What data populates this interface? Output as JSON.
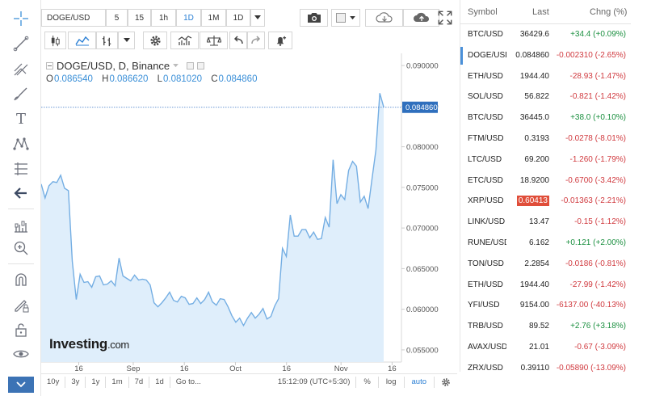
{
  "toolbar": {
    "symbol": "DOGE/USD",
    "intervals": [
      "5",
      "15",
      "1h",
      "1D",
      "1M",
      "1D"
    ],
    "active_interval": "1D"
  },
  "legend": {
    "title": "DOGE/USD, D, Binance",
    "open_label": "O",
    "open": "0.086540",
    "high_label": "H",
    "high": "0.086620",
    "low_label": "L",
    "low": "0.081020",
    "close_label": "C",
    "close": "0.084860"
  },
  "price_axis": {
    "ticks": [
      "0.090000",
      "0.085000",
      "0.080000",
      "0.075000",
      "0.070000",
      "0.065000",
      "0.060000",
      "0.055000"
    ],
    "current_price": "0.084860"
  },
  "time_axis": {
    "ticks": [
      "16",
      "Sep",
      "16",
      "Oct",
      "16",
      "Nov",
      "16"
    ]
  },
  "watermark": {
    "brand": "Investing",
    "suffix": ".com"
  },
  "bottom_bar": {
    "ranges": [
      "10y",
      "3y",
      "1y",
      "1m",
      "7d",
      "1d"
    ],
    "goto": "Go to...",
    "clock": "15:12:09 (UTC+5:30)",
    "percent": "%",
    "log": "log",
    "auto": "auto"
  },
  "chart_data": {
    "type": "area",
    "title": "DOGE/USD, D, Binance",
    "xlabel": "",
    "ylabel": "",
    "ylim": [
      0.0535,
      0.0915
    ],
    "x_range_days": [
      0,
      92
    ],
    "x_ticks": [
      {
        "day": 15,
        "label": "16"
      },
      {
        "day": 31,
        "label": "Sep"
      },
      {
        "day": 46,
        "label": "16"
      },
      {
        "day": 61,
        "label": "Oct"
      },
      {
        "day": 76,
        "label": "16"
      },
      {
        "day": 92,
        "label": "Nov"
      },
      {
        "day": 107,
        "label": "16"
      }
    ],
    "series": [
      {
        "name": "DOGE/USD",
        "values": [
          0.0754,
          0.0737,
          0.0752,
          0.0757,
          0.0756,
          0.0765,
          0.0749,
          0.0746,
          0.0659,
          0.0612,
          0.0643,
          0.0633,
          0.0634,
          0.0627,
          0.064,
          0.0641,
          0.063,
          0.0631,
          0.0635,
          0.0629,
          0.0663,
          0.0641,
          0.0638,
          0.0635,
          0.0642,
          0.0636,
          0.0637,
          0.0636,
          0.063,
          0.0608,
          0.0603,
          0.0608,
          0.0614,
          0.0621,
          0.0611,
          0.0609,
          0.0616,
          0.0614,
          0.0606,
          0.0607,
          0.0614,
          0.0607,
          0.0612,
          0.0621,
          0.0609,
          0.0605,
          0.0613,
          0.0612,
          0.0603,
          0.0592,
          0.0584,
          0.0589,
          0.058,
          0.0589,
          0.0596,
          0.0589,
          0.0594,
          0.0601,
          0.0588,
          0.0591,
          0.0604,
          0.0613,
          0.0675,
          0.0665,
          0.0716,
          0.069,
          0.069,
          0.0698,
          0.0698,
          0.0688,
          0.0695,
          0.0686,
          0.0687,
          0.0713,
          0.0701,
          0.0784,
          0.073,
          0.0741,
          0.0735,
          0.0771,
          0.0782,
          0.0776,
          0.0732,
          0.0739,
          0.0724,
          0.076,
          0.0796,
          0.0866,
          0.0849
        ]
      }
    ]
  },
  "watchlist": {
    "header": {
      "symbol": "Symbol",
      "last": "Last",
      "chng": "Chng (%)"
    },
    "rows": [
      {
        "symbol": "BTC/USD",
        "last": "36429.6",
        "chng": "+34.4 (+0.09%)",
        "dir": "pos"
      },
      {
        "symbol": "DOGE/USD",
        "last": "0.084860",
        "chng": "-0.002310 (-2.65%)",
        "dir": "neg",
        "selected": true
      },
      {
        "symbol": "ETH/USD",
        "last": "1944.40",
        "chng": "-28.93 (-1.47%)",
        "dir": "neg"
      },
      {
        "symbol": "SOL/USD",
        "last": "56.822",
        "chng": "-0.821 (-1.42%)",
        "dir": "neg"
      },
      {
        "symbol": "BTC/USD",
        "last": "36445.0",
        "chng": "+38.0 (+0.10%)",
        "dir": "pos"
      },
      {
        "symbol": "FTM/USD",
        "last": "0.3193",
        "chng": "-0.0278 (-8.01%)",
        "dir": "neg"
      },
      {
        "symbol": "LTC/USD",
        "last": "69.200",
        "chng": "-1.260 (-1.79%)",
        "dir": "neg"
      },
      {
        "symbol": "ETC/USD",
        "last": "18.9200",
        "chng": "-0.6700 (-3.42%)",
        "dir": "neg"
      },
      {
        "symbol": "XRP/USD",
        "last": "0.60413",
        "chng": "-0.01363 (-2.21%)",
        "dir": "neg",
        "flash": true
      },
      {
        "symbol": "LINK/USD",
        "last": "13.47",
        "chng": "-0.15 (-1.12%)",
        "dir": "neg"
      },
      {
        "symbol": "RUNE/USD",
        "last": "6.162",
        "chng": "+0.121 (+2.00%)",
        "dir": "pos"
      },
      {
        "symbol": "TON/USD",
        "last": "2.2854",
        "chng": "-0.0186 (-0.81%)",
        "dir": "neg"
      },
      {
        "symbol": "ETH/USD",
        "last": "1944.40",
        "chng": "-27.99 (-1.42%)",
        "dir": "neg"
      },
      {
        "symbol": "YFI/USD",
        "last": "9154.00",
        "chng": "-6137.00 (-40.13%)",
        "dir": "neg"
      },
      {
        "symbol": "TRB/USD",
        "last": "89.52",
        "chng": "+2.76 (+3.18%)",
        "dir": "pos"
      },
      {
        "symbol": "AVAX/USD",
        "last": "21.01",
        "chng": "-0.67 (-3.09%)",
        "dir": "neg"
      },
      {
        "symbol": "ZRX/USD",
        "last": "0.39110",
        "chng": "-0.05890 (-13.09%)",
        "dir": "neg"
      }
    ]
  }
}
